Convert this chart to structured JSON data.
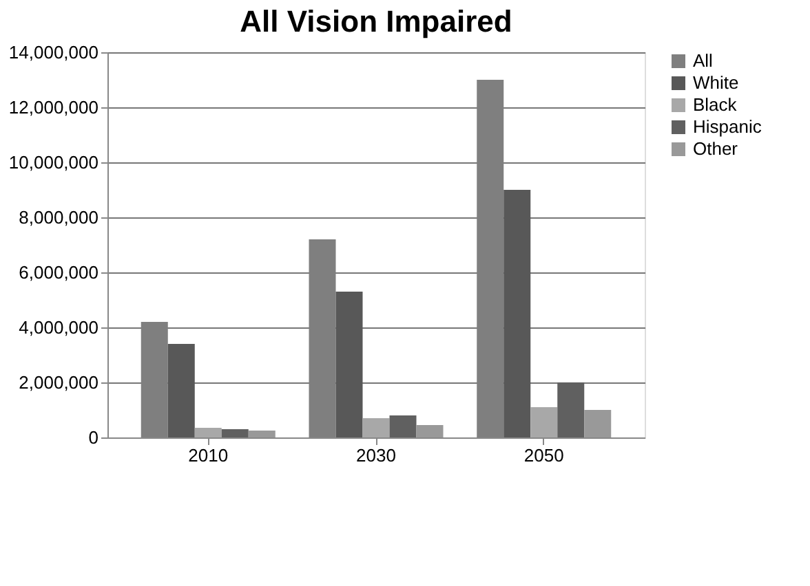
{
  "chart_data": {
    "type": "bar",
    "title": "All Vision Impaired",
    "categories": [
      "2010",
      "2030",
      "2050"
    ],
    "series": [
      {
        "name": "All",
        "color": "#7f7f7f",
        "values": [
          4200000,
          7200000,
          13000000
        ]
      },
      {
        "name": "White",
        "color": "#585858",
        "values": [
          3400000,
          5300000,
          9000000
        ]
      },
      {
        "name": "Black",
        "color": "#a8a8a8",
        "values": [
          350000,
          700000,
          1100000
        ]
      },
      {
        "name": "Hispanic",
        "color": "#606060",
        "values": [
          300000,
          800000,
          2000000
        ]
      },
      {
        "name": "Other",
        "color": "#999999",
        "values": [
          250000,
          450000,
          1000000
        ]
      }
    ],
    "ylim": [
      0,
      14000000
    ],
    "yticks": [
      0,
      {
        "value": 2000000,
        "label": "2,000,000"
      },
      {
        "value": 4000000,
        "label": "4,000,000"
      },
      {
        "value": 6000000,
        "label": "6,000,000"
      },
      {
        "value": 8000000,
        "label": "8,000,000"
      },
      {
        "value": 10000000,
        "label": "10,000,000"
      },
      {
        "value": 12000000,
        "label": "12,000,000"
      },
      {
        "value": 14000000,
        "label": "14,000,000"
      }
    ],
    "grid": "y",
    "legend": "right"
  }
}
